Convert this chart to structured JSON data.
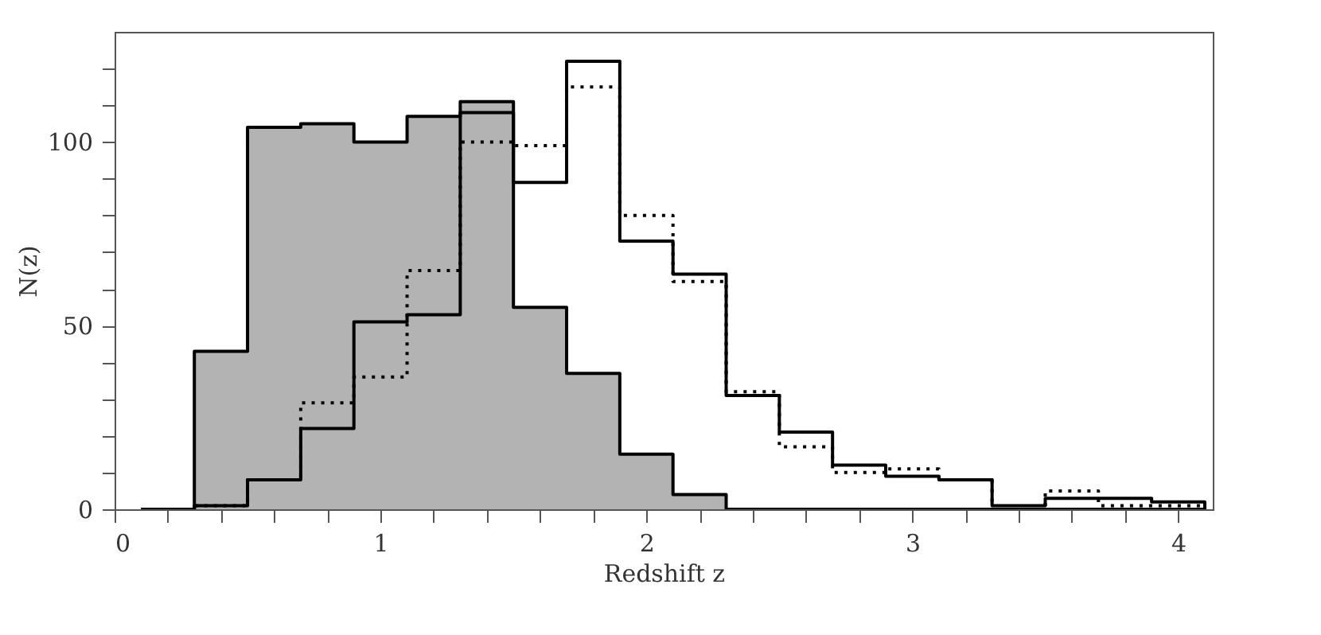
{
  "chart_data": {
    "type": "step",
    "xlabel": "Redshift z",
    "ylabel": "N(z)",
    "x": [
      0.1,
      0.3,
      0.5,
      0.7,
      0.9,
      1.1,
      1.3,
      1.5,
      1.7,
      1.9,
      2.1,
      2.3,
      2.5,
      2.7,
      2.9,
      3.1,
      3.3,
      3.5,
      3.7,
      3.9,
      4.1
    ],
    "series": [
      {
        "type": "area",
        "color": "#b3b3b3",
        "line_style": "solid",
        "values": [
          0,
          43,
          104,
          105,
          100,
          107,
          111,
          55,
          37,
          15,
          4,
          0,
          0,
          0,
          0,
          0,
          0,
          0,
          0,
          0,
          0
        ]
      },
      {
        "color": "#000000",
        "line_style": "solid",
        "values": [
          0,
          1,
          8,
          22,
          51,
          53,
          108,
          89,
          122,
          73,
          64,
          31,
          21,
          12,
          9,
          8,
          1,
          3,
          3,
          2,
          0
        ]
      },
      {
        "color": "#000000",
        "line_style": "dotted",
        "values": [
          0,
          1,
          8,
          29,
          36,
          65,
          100,
          99,
          115,
          80,
          62,
          32,
          17,
          10,
          11,
          8,
          0,
          5,
          1,
          1,
          1
        ]
      }
    ],
    "xlim": [
      0,
      4.13
    ],
    "ylim": [
      0,
      130
    ],
    "xticks": [
      0,
      {
        "value": 0.2,
        "label": null
      },
      {
        "value": 0.4,
        "label": null
      },
      {
        "value": 0.6,
        "label": null
      },
      {
        "value": 0.8,
        "label": null
      },
      1,
      {
        "value": 1.2,
        "label": null
      },
      {
        "value": 1.4,
        "label": null
      },
      {
        "value": 1.6,
        "label": null
      },
      {
        "value": 1.8,
        "label": null
      },
      2,
      {
        "value": 2.2,
        "label": null
      },
      {
        "value": 2.4,
        "label": null
      },
      {
        "value": 2.6,
        "label": null
      },
      {
        "value": 2.8,
        "label": null
      },
      3,
      {
        "value": 3.2,
        "label": null
      },
      {
        "value": 3.4,
        "label": null
      },
      {
        "value": 3.6,
        "label": null
      },
      {
        "value": 3.8,
        "label": null
      },
      4
    ],
    "yticks": [
      0,
      {
        "value": 10,
        "label": null
      },
      {
        "value": 20,
        "label": null
      },
      {
        "value": 30,
        "label": null
      },
      {
        "value": 40,
        "label": null
      },
      50,
      {
        "value": 60,
        "label": null
      },
      {
        "value": 70,
        "label": null
      },
      {
        "value": 80,
        "label": null
      },
      {
        "value": 90,
        "label": null
      },
      100,
      {
        "value": 110,
        "label": null
      },
      {
        "value": 120,
        "label": null
      }
    ],
    "grid": false
  }
}
